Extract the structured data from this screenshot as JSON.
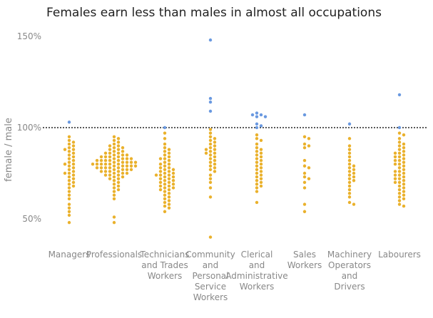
{
  "chart_data": {
    "type": "scatter",
    "title": "Females earn less than males in almost all occupations",
    "ylabel": "female / male",
    "yticks": [
      "50%",
      "100%",
      "150%"
    ],
    "ytick_values": [
      50,
      100,
      150
    ],
    "ylim": [
      35,
      155
    ],
    "reference_line": 100,
    "grid": false,
    "colors": {
      "below_parity": "#eab12c",
      "above_parity": "#6a99e0",
      "reference_line": "#222222"
    },
    "categories": [
      {
        "label": "Managers",
        "lines": [
          "Managers"
        ],
        "above": [
          103
        ],
        "below": [
          95,
          93,
          92,
          91,
          90,
          89,
          88,
          88,
          87,
          86,
          85,
          84,
          83,
          82,
          81,
          80,
          80,
          79,
          78,
          77,
          76,
          75,
          75,
          74,
          73,
          72,
          71,
          70,
          69,
          68,
          67,
          65,
          63,
          61,
          58,
          56,
          54,
          52,
          48
        ]
      },
      {
        "label": "Professionals",
        "lines": [
          "Professionals"
        ],
        "above": [],
        "below": [
          95,
          94,
          93,
          92,
          91,
          90,
          90,
          89,
          89,
          88,
          88,
          87,
          87,
          86,
          86,
          86,
          85,
          85,
          85,
          84,
          84,
          84,
          84,
          83,
          83,
          83,
          83,
          82,
          82,
          82,
          82,
          82,
          81,
          81,
          81,
          81,
          81,
          80,
          80,
          80,
          80,
          80,
          80,
          79,
          79,
          79,
          79,
          79,
          78,
          78,
          78,
          78,
          78,
          77,
          77,
          77,
          77,
          76,
          76,
          76,
          76,
          75,
          75,
          75,
          74,
          74,
          74,
          73,
          73,
          72,
          72,
          71,
          70,
          69,
          68,
          67,
          66,
          65,
          63,
          61,
          51,
          48
        ]
      },
      {
        "label": "Technicians and Trades Workers",
        "lines": [
          "Technicians",
          "and Trades",
          "Workers"
        ],
        "above": [
          100
        ],
        "below": [
          97,
          94,
          91,
          89,
          88,
          87,
          86,
          85,
          84,
          83,
          83,
          82,
          81,
          80,
          80,
          79,
          78,
          78,
          77,
          77,
          76,
          76,
          75,
          75,
          74,
          74,
          74,
          73,
          73,
          72,
          72,
          71,
          71,
          70,
          70,
          69,
          69,
          68,
          68,
          67,
          67,
          66,
          66,
          65,
          64,
          63,
          62,
          61,
          60,
          59,
          58,
          57,
          56,
          54
        ]
      },
      {
        "label": "Community and Personal Service Workers",
        "lines": [
          "Community",
          "and",
          "Personal",
          "Service",
          "Workers"
        ],
        "above": [
          148,
          116,
          114,
          109
        ],
        "below": [
          99,
          97,
          95,
          94,
          93,
          92,
          91,
          90,
          89,
          88,
          88,
          87,
          86,
          86,
          85,
          84,
          83,
          82,
          81,
          80,
          79,
          78,
          77,
          76,
          74,
          72,
          70,
          67,
          62,
          40
        ]
      },
      {
        "label": "Clerical and Administrative Workers",
        "lines": [
          "Clerical",
          "and",
          "Administrative",
          "Workers"
        ],
        "above": [
          108,
          107,
          107,
          106,
          106,
          102,
          101,
          100
        ],
        "below": [
          96,
          94,
          93,
          91,
          89,
          88,
          87,
          86,
          85,
          84,
          83,
          82,
          81,
          80,
          79,
          78,
          77,
          76,
          75,
          74,
          73,
          72,
          71,
          70,
          69,
          68,
          67,
          65,
          59
        ]
      },
      {
        "label": "Sales Workers",
        "lines": [
          "Sales",
          "Workers"
        ],
        "above": [
          107
        ],
        "below": [
          95,
          94,
          91,
          90,
          89,
          82,
          79,
          78,
          75,
          73,
          72,
          70,
          67,
          58,
          54
        ]
      },
      {
        "label": "Machinery Operators and Drivers",
        "lines": [
          "Machinery",
          "Operators",
          "and",
          "Drivers"
        ],
        "above": [
          102
        ],
        "below": [
          94,
          90,
          88,
          86,
          84,
          82,
          80,
          79,
          78,
          77,
          76,
          75,
          74,
          73,
          72,
          71,
          70,
          68,
          66,
          64,
          62,
          59,
          58
        ]
      },
      {
        "label": "Labourers",
        "lines": [
          "Labourers"
        ],
        "above": [
          118,
          100
        ],
        "below": [
          97,
          96,
          94,
          92,
          91,
          90,
          89,
          88,
          87,
          86,
          86,
          85,
          84,
          84,
          83,
          82,
          82,
          81,
          80,
          80,
          79,
          78,
          77,
          76,
          76,
          75,
          74,
          74,
          73,
          72,
          72,
          71,
          70,
          70,
          69,
          68,
          67,
          66,
          65,
          64,
          63,
          62,
          61,
          60,
          58,
          57
        ]
      }
    ]
  }
}
